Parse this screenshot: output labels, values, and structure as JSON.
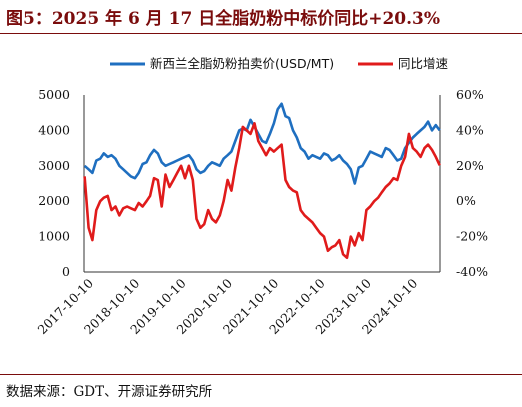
{
  "title": "图5：2025 年 6 月 17 日全脂奶粉中标价同比+20.3%",
  "source": "数据来源：GDT、开源证券研究所",
  "chart_data": {
    "type": "line",
    "x_ticks": [
      "2017-10-10",
      "2018-10-10",
      "2019-10-10",
      "2020-10-10",
      "2021-10-10",
      "2022-10-10",
      "2023-10-10",
      "2024-10-10"
    ],
    "x_range": [
      "2017-10-10",
      "2025-06-17"
    ],
    "y_left": {
      "ticks": [
        "0",
        "1000",
        "2000",
        "3000",
        "4000",
        "5000"
      ],
      "range": [
        0,
        5000
      ]
    },
    "y_right": {
      "ticks": [
        "-40%",
        "-20%",
        "0%",
        "20%",
        "40%",
        "60%"
      ],
      "range": [
        -40,
        60
      ]
    },
    "legend_placement": "top",
    "grid": false,
    "series": [
      {
        "name": "新西兰全脂奶粉拍卖价(USD/MT)",
        "axis": "left",
        "color": "#1f6fc0",
        "x": [
          "2017-10",
          "2017-11",
          "2017-12",
          "2018-01",
          "2018-02",
          "2018-03",
          "2018-04",
          "2018-05",
          "2018-06",
          "2018-07",
          "2018-08",
          "2018-09",
          "2018-10",
          "2018-11",
          "2018-12",
          "2019-01",
          "2019-02",
          "2019-03",
          "2019-04",
          "2019-05",
          "2019-06",
          "2019-07",
          "2019-08",
          "2019-09",
          "2019-10",
          "2019-11",
          "2019-12",
          "2020-01",
          "2020-02",
          "2020-03",
          "2020-04",
          "2020-05",
          "2020-06",
          "2020-07",
          "2020-08",
          "2020-09",
          "2020-10",
          "2020-11",
          "2020-12",
          "2021-01",
          "2021-02",
          "2021-03",
          "2021-04",
          "2021-05",
          "2021-06",
          "2021-07",
          "2021-08",
          "2021-09",
          "2021-10",
          "2021-11",
          "2021-12",
          "2022-01",
          "2022-02",
          "2022-03",
          "2022-04",
          "2022-05",
          "2022-06",
          "2022-07",
          "2022-08",
          "2022-09",
          "2022-10",
          "2022-11",
          "2022-12",
          "2023-01",
          "2023-02",
          "2023-03",
          "2023-04",
          "2023-05",
          "2023-06",
          "2023-07",
          "2023-08",
          "2023-09",
          "2023-10",
          "2023-11",
          "2023-12",
          "2024-01",
          "2024-02",
          "2024-03",
          "2024-04",
          "2024-05",
          "2024-06",
          "2024-07",
          "2024-08",
          "2024-09",
          "2024-10",
          "2024-11",
          "2024-12",
          "2025-01",
          "2025-02",
          "2025-03",
          "2025-04",
          "2025-05",
          "2025-06"
        ],
        "values": [
          3000,
          2900,
          2800,
          3150,
          3200,
          3350,
          3250,
          3300,
          3200,
          3000,
          2900,
          2800,
          2700,
          2650,
          2800,
          3050,
          3100,
          3300,
          3450,
          3350,
          3100,
          3000,
          3050,
          3100,
          3150,
          3200,
          3250,
          3300,
          3150,
          2900,
          2800,
          2850,
          3000,
          3100,
          3050,
          3000,
          3200,
          3300,
          3400,
          3700,
          4000,
          4050,
          4000,
          4300,
          4100,
          3900,
          3700,
          3650,
          3900,
          4200,
          4600,
          4750,
          4400,
          4350,
          4000,
          3800,
          3500,
          3400,
          3200,
          3300,
          3250,
          3200,
          3350,
          3300,
          3150,
          3200,
          3300,
          3150,
          3050,
          2900,
          2500,
          2950,
          3000,
          3200,
          3400,
          3350,
          3300,
          3250,
          3500,
          3450,
          3300,
          3150,
          3200,
          3500,
          3650,
          3800,
          3900,
          4000,
          4100,
          4250,
          4000,
          4150,
          4000
        ]
      },
      {
        "name": "同比增速",
        "axis": "right",
        "color": "#e01b1b",
        "x": [
          "2017-10",
          "2017-11",
          "2017-12",
          "2018-01",
          "2018-02",
          "2018-03",
          "2018-04",
          "2018-05",
          "2018-06",
          "2018-07",
          "2018-08",
          "2018-09",
          "2018-10",
          "2018-11",
          "2018-12",
          "2019-01",
          "2019-02",
          "2019-03",
          "2019-04",
          "2019-05",
          "2019-06",
          "2019-07",
          "2019-08",
          "2019-09",
          "2019-10",
          "2019-11",
          "2019-12",
          "2020-01",
          "2020-02",
          "2020-03",
          "2020-04",
          "2020-05",
          "2020-06",
          "2020-07",
          "2020-08",
          "2020-09",
          "2020-10",
          "2020-11",
          "2020-12",
          "2021-01",
          "2021-02",
          "2021-03",
          "2021-04",
          "2021-05",
          "2021-06",
          "2021-07",
          "2021-08",
          "2021-09",
          "2021-10",
          "2021-11",
          "2021-12",
          "2022-01",
          "2022-02",
          "2022-03",
          "2022-04",
          "2022-05",
          "2022-06",
          "2022-07",
          "2022-08",
          "2022-09",
          "2022-10",
          "2022-11",
          "2022-12",
          "2023-01",
          "2023-02",
          "2023-03",
          "2023-04",
          "2023-05",
          "2023-06",
          "2023-07",
          "2023-08",
          "2023-09",
          "2023-10",
          "2023-11",
          "2023-12",
          "2024-01",
          "2024-02",
          "2024-03",
          "2024-04",
          "2024-05",
          "2024-06",
          "2024-07",
          "2024-08",
          "2024-09",
          "2024-10",
          "2024-11",
          "2024-12",
          "2025-01",
          "2025-02",
          "2025-03",
          "2025-04",
          "2025-05",
          "2025-06"
        ],
        "values": [
          14,
          -15,
          -22,
          -5,
          0,
          2,
          3,
          -5,
          -3,
          -8,
          -4,
          -3,
          -4,
          -5,
          -1,
          -3,
          0,
          3,
          13,
          12,
          -3,
          15,
          8,
          12,
          16,
          20,
          13,
          20,
          12,
          -10,
          -15,
          -13,
          -5,
          -10,
          -12,
          -8,
          0,
          12,
          6,
          19,
          30,
          42,
          40,
          38,
          44,
          34,
          30,
          26,
          30,
          28,
          30,
          32,
          12,
          8,
          6,
          5,
          -5,
          -8,
          -10,
          -12,
          -15,
          -18,
          -20,
          -28,
          -26,
          -25,
          -22,
          -30,
          -32,
          -20,
          -25,
          -18,
          -22,
          -5,
          -3,
          0,
          2,
          5,
          8,
          10,
          13,
          12,
          20,
          25,
          38,
          30,
          28,
          25,
          30,
          32,
          29,
          25,
          20.3
        ]
      }
    ]
  }
}
